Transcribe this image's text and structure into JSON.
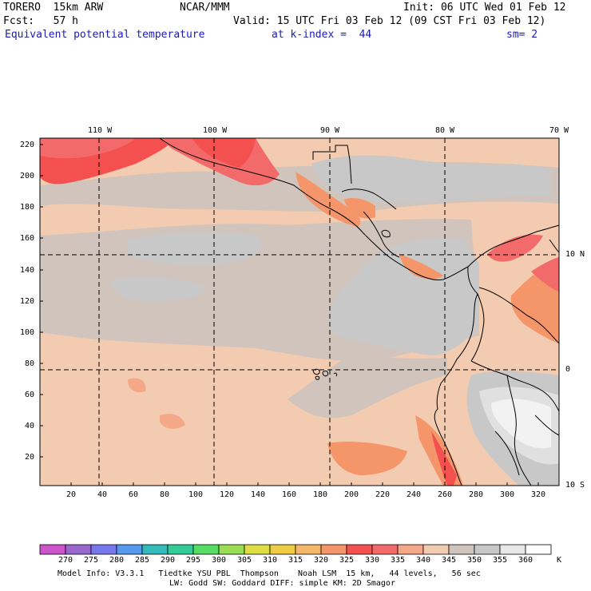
{
  "header": {
    "model": "TORERO  15km ARW",
    "org": "NCAR/MMM",
    "init": "Init: 06 UTC Wed 01 Feb 12",
    "fcst": "Fcst:   57 h",
    "valid": "Valid: 15 UTC Fri 03 Feb 12 (09 CST Fri 03 Feb 12)",
    "field": "Equivalent potential temperature",
    "level": "at k-index =  44",
    "smooth": "sm= 2"
  },
  "map": {
    "lon_labels": [
      "110 W",
      "100 W",
      "90 W",
      "80 W",
      "70 W"
    ],
    "lat_labels": [
      "10 N",
      "0",
      "10 S"
    ],
    "y_ticks": [
      "220",
      "200",
      "180",
      "160",
      "140",
      "120",
      "100",
      "80",
      "60",
      "40",
      "20"
    ],
    "x_ticks": [
      "20",
      "40",
      "60",
      "80",
      "100",
      "120",
      "140",
      "160",
      "180",
      "200",
      "220",
      "240",
      "260",
      "280",
      "300",
      "320"
    ]
  },
  "colorbar": {
    "unit": "K",
    "levels": [
      "270",
      "275",
      "280",
      "285",
      "290",
      "295",
      "300",
      "305",
      "310",
      "315",
      "320",
      "325",
      "330",
      "335",
      "340",
      "345",
      "350",
      "355",
      "360"
    ],
    "colors": [
      "#cc55cc",
      "#9966cc",
      "#7777ee",
      "#5599ee",
      "#33bbbb",
      "#33cc99",
      "#55dd66",
      "#99dd55",
      "#dddd44",
      "#eecc44",
      "#f5b86a",
      "#f5956a",
      "#f55050",
      "#f26a6a",
      "#f5a888",
      "#f2cbb0",
      "#d0c4bc",
      "#c8c8c8",
      "#e8e8e8",
      "#ffffff"
    ]
  },
  "footer": {
    "line1": "Model Info: V3.3.1   Tiedtke YSU PBL  Thompson    Noah LSM  15 km,   44 levels,   56 sec",
    "line2": "LW: Godd SW: Goddard DIFF: simple KM: 2D Smagor"
  }
}
